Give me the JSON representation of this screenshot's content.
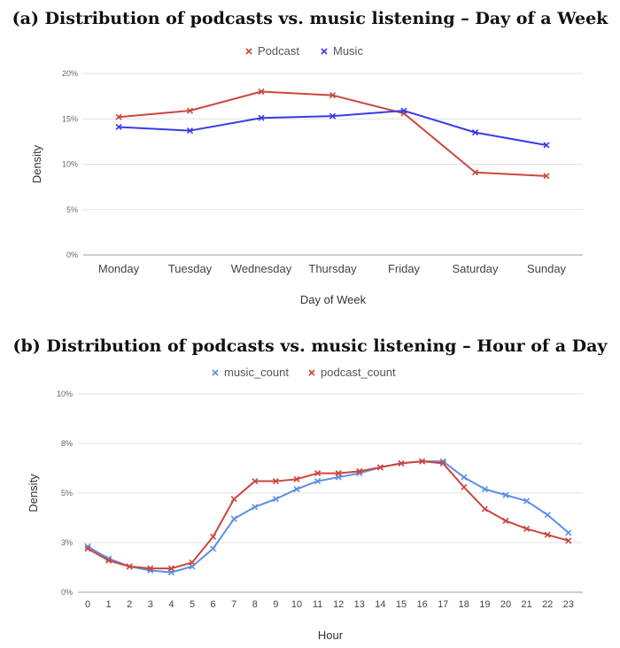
{
  "panel_a_title": "(a) Distribution of podcasts vs. music listening – Day of a Week",
  "panel_b_title": "(b) Distribution of podcasts vs. music listening – Hour of a Day",
  "chart_data": [
    {
      "type": "line",
      "title": "(a) Distribution of podcasts vs. music listening – Day of a Week",
      "xlabel": "Day of Week",
      "ylabel": "Density",
      "ylim": [
        0,
        20
      ],
      "yticks": [
        "0%",
        "5%",
        "10%",
        "15%",
        "20%"
      ],
      "yticks_values": [
        0,
        5,
        10,
        15,
        20
      ],
      "grid": true,
      "legend": "top-center",
      "categories": [
        "Monday",
        "Tuesday",
        "Wednesday",
        "Thursday",
        "Friday",
        "Saturday",
        "Sunday"
      ],
      "series": [
        {
          "name": "Podcast",
          "color": "#c9473f",
          "values": [
            15.2,
            15.9,
            18.0,
            17.6,
            15.6,
            9.1,
            8.7
          ]
        },
        {
          "name": "Music",
          "color": "#3a3be6",
          "values": [
            14.1,
            13.7,
            15.1,
            15.3,
            15.9,
            13.5,
            12.1
          ]
        }
      ]
    },
    {
      "type": "line",
      "title": "(b) Distribution of podcasts vs. music listening – Hour of a Day",
      "xlabel": "Hour",
      "ylabel": "Density",
      "ylim": [
        0,
        10
      ],
      "yticks": [
        "0%",
        "3%",
        "5%",
        "8%",
        "10%"
      ],
      "yticks_values": [
        0,
        2.5,
        5,
        7.5,
        10
      ],
      "grid": true,
      "legend": "top-center",
      "categories": [
        "0",
        "1",
        "2",
        "3",
        "4",
        "5",
        "6",
        "7",
        "8",
        "9",
        "10",
        "11",
        "12",
        "13",
        "14",
        "15",
        "16",
        "17",
        "18",
        "19",
        "20",
        "21",
        "22",
        "23"
      ],
      "series": [
        {
          "name": "music_count",
          "color": "#5b8fe6",
          "values": [
            2.3,
            1.7,
            1.3,
            1.1,
            1.0,
            1.3,
            2.2,
            3.7,
            4.3,
            4.7,
            5.2,
            5.6,
            5.8,
            6.0,
            6.3,
            6.5,
            6.6,
            6.6,
            5.8,
            5.2,
            4.9,
            4.6,
            3.9,
            3.0
          ]
        },
        {
          "name": "podcast_count",
          "color": "#c9473f",
          "values": [
            2.2,
            1.6,
            1.3,
            1.2,
            1.2,
            1.5,
            2.8,
            4.7,
            5.6,
            5.6,
            5.7,
            6.0,
            6.0,
            6.1,
            6.3,
            6.5,
            6.6,
            6.5,
            5.3,
            4.2,
            3.6,
            3.2,
            2.9,
            2.6
          ]
        }
      ]
    }
  ]
}
